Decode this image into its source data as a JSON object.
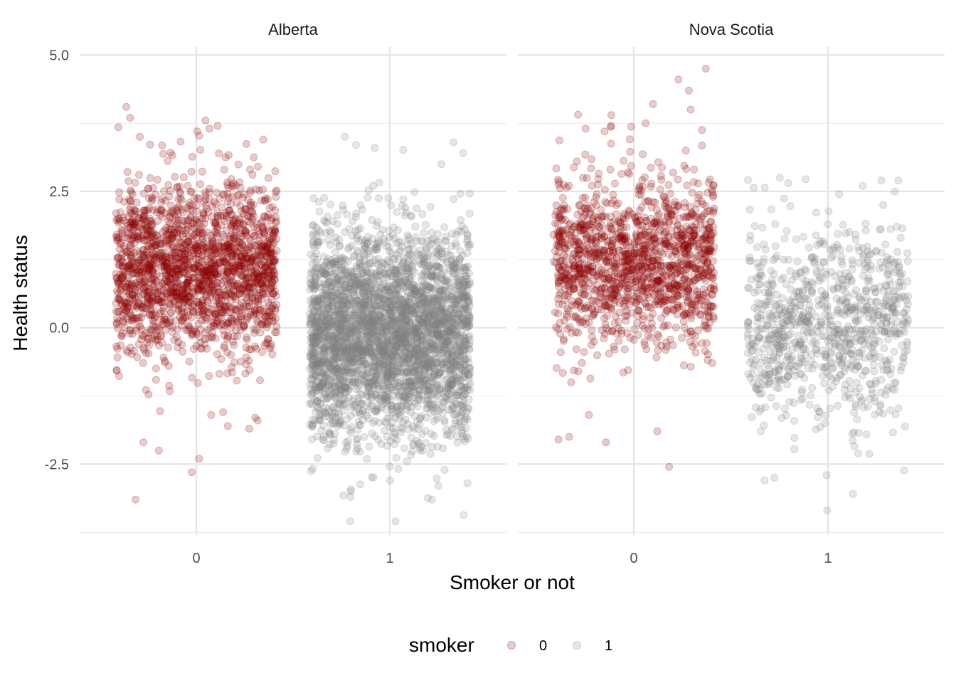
{
  "chart_data": {
    "type": "scatter",
    "jitter": true,
    "xlabel": "Smoker or not",
    "ylabel": "Health status",
    "categories": [
      "0",
      "1"
    ],
    "ylim": [
      -3.8,
      5.2
    ],
    "y_ticks": [
      "5.0",
      "2.5",
      "0.0",
      "-2.5"
    ],
    "y_tick_values": [
      5.0,
      2.5,
      0.0,
      -2.5
    ],
    "grid": true,
    "legend": {
      "title": "smoker",
      "position": "bottom",
      "entries": [
        {
          "label": "0",
          "color": "#8b0000"
        },
        {
          "label": "1",
          "color": "#808080"
        }
      ]
    },
    "point_alpha": 0.2,
    "panels": [
      {
        "title": "Alberta",
        "series": [
          {
            "category": "0",
            "color": "#8b0000",
            "n": 1900,
            "center": 1.1,
            "spread": 0.8,
            "y_min": -3.15,
            "y_max": 4.05,
            "outliers": [
              4.05,
              3.85,
              3.8,
              3.7,
              3.65,
              3.6,
              3.5,
              -3.15,
              -2.65,
              -2.4,
              -2.25,
              -2.1,
              -1.85,
              -1.8,
              -1.7,
              -1.65,
              -1.6,
              -1.55
            ]
          },
          {
            "category": "1",
            "color": "#808080",
            "n": 3500,
            "center": -0.1,
            "spread": 0.9,
            "y_min": -3.55,
            "y_max": 3.5,
            "outliers": [
              3.5,
              3.4,
              3.35,
              3.3,
              3.2,
              3.0,
              -3.55,
              -3.15,
              -3.1,
              -3.0,
              -2.9,
              -2.85,
              -2.8
            ]
          }
        ]
      },
      {
        "title": "Nova Scotia",
        "series": [
          {
            "category": "0",
            "color": "#8b0000",
            "n": 1400,
            "center": 1.2,
            "spread": 0.75,
            "y_min": -2.55,
            "y_max": 4.75,
            "outliers": [
              4.75,
              4.55,
              4.35,
              4.1,
              4.0,
              3.9,
              3.75,
              3.7,
              3.65,
              3.6,
              -2.55,
              -2.1,
              -2.05,
              -2.0,
              -1.9,
              -1.6
            ]
          },
          {
            "category": "1",
            "color": "#808080",
            "n": 900,
            "center": 0.05,
            "spread": 0.9,
            "y_min": -3.35,
            "y_max": 2.75,
            "outliers": [
              2.75,
              2.7,
              2.65,
              2.6,
              2.45,
              -3.35,
              -3.05,
              -2.8,
              -2.75,
              -2.7
            ]
          }
        ]
      }
    ]
  }
}
